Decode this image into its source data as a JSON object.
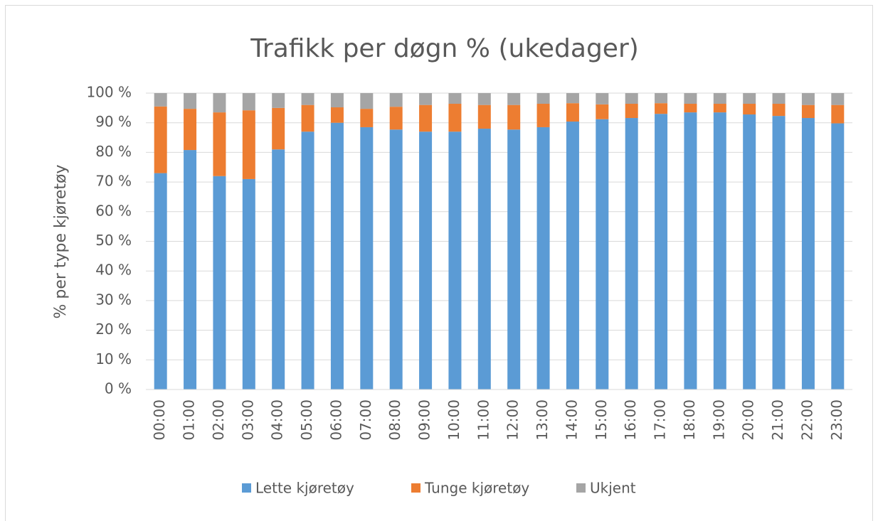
{
  "chart_data": {
    "type": "stacked_bar",
    "title": "Trafikk per døgn % (ukedager)",
    "y_label": "% per type kjøretøy",
    "categories": [
      "00:00",
      "01:00",
      "02:00",
      "03:00",
      "04:00",
      "05:00",
      "06:00",
      "07:00",
      "08:00",
      "09:00",
      "10:00",
      "11:00",
      "12:00",
      "13:00",
      "14:00",
      "15:00",
      "16:00",
      "17:00",
      "18:00",
      "19:00",
      "20:00",
      "21:00",
      "22:00",
      "23:00"
    ],
    "series": [
      {
        "name": "Lette kjøretøy",
        "color": "#5b9bd5",
        "values": [
          73,
          80.8,
          72,
          71,
          81,
          87,
          90,
          88.5,
          87.7,
          87,
          87,
          88,
          87.7,
          88.5,
          90.4,
          91.2,
          91.6,
          93,
          93.5,
          93.5,
          92.8,
          92.3,
          91.6,
          89.8
        ]
      },
      {
        "name": "Tunge kjøretøy",
        "color": "#ed7d31",
        "values": [
          22.5,
          13.9,
          21.5,
          23.2,
          14,
          9,
          5.2,
          6.2,
          7.7,
          9,
          9.4,
          8,
          8.3,
          7.9,
          6.2,
          5,
          4.8,
          3.6,
          2.9,
          2.9,
          3.6,
          4.1,
          4.4,
          6.2
        ]
      },
      {
        "name": "Ukjent",
        "color": "#a5a5a5",
        "values": [
          4.5,
          5.3,
          6.5,
          5.8,
          5,
          4,
          4.8,
          5.3,
          4.6,
          4,
          3.6,
          4,
          4,
          3.6,
          3.4,
          3.8,
          3.6,
          3.4,
          3.6,
          3.6,
          3.6,
          3.6,
          4,
          4
        ]
      }
    ],
    "ylim": [
      0,
      100
    ],
    "yticks": [
      {
        "value": 0,
        "label": "0 %"
      },
      {
        "value": 10,
        "label": "10 %"
      },
      {
        "value": 20,
        "label": "20 %"
      },
      {
        "value": 30,
        "label": "30 %"
      },
      {
        "value": 40,
        "label": "40 %"
      },
      {
        "value": 50,
        "label": "50 %"
      },
      {
        "value": 60,
        "label": "60 %"
      },
      {
        "value": 70,
        "label": "70 %"
      },
      {
        "value": 80,
        "label": "80 %"
      },
      {
        "value": 90,
        "label": "90 %"
      },
      {
        "value": 100,
        "label": "100 %"
      }
    ],
    "grid": true,
    "legend": "bottom"
  }
}
